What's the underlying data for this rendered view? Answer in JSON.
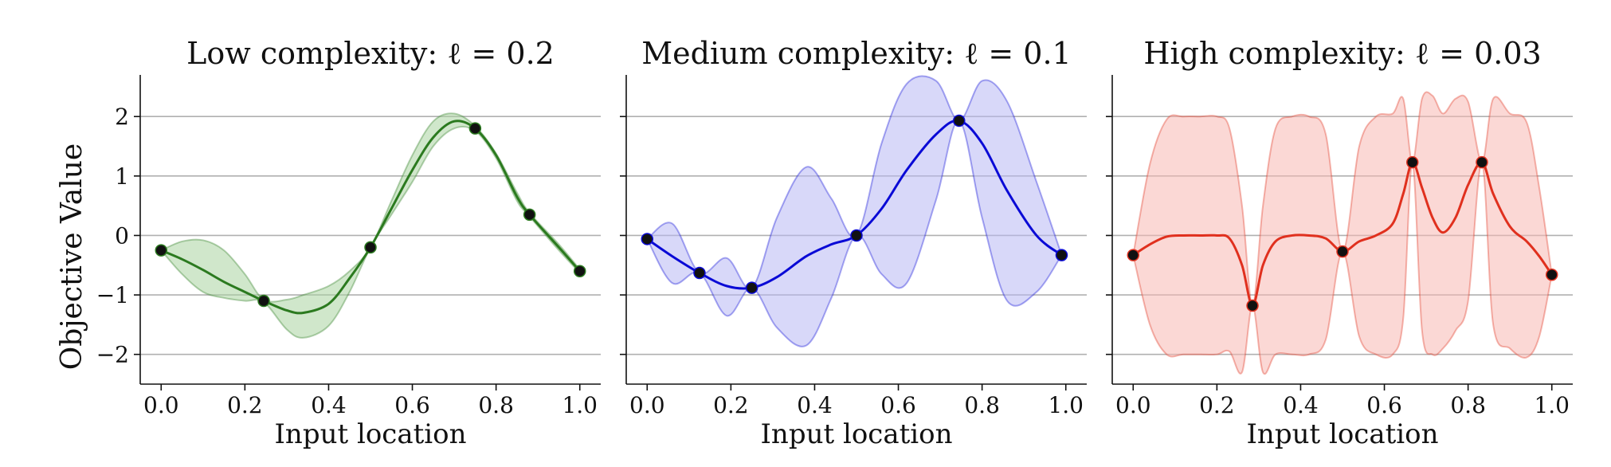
{
  "figure": {
    "ylabel": "Objective Value"
  },
  "chart_data": [
    {
      "type": "line",
      "title": "Low complexity: ℓ = 0.2",
      "xlabel": "Input location",
      "ylabel": "Objective Value",
      "xlim": [
        -0.05,
        1.05
      ],
      "ylim": [
        -2.5,
        2.7
      ],
      "xticks": [
        0.0,
        0.2,
        0.4,
        0.6,
        0.8,
        1.0
      ],
      "xtick_labels": [
        "0.0",
        "0.2",
        "0.4",
        "0.6",
        "0.8",
        "1.0"
      ],
      "yticks": [
        -2,
        -1,
        0,
        1,
        2
      ],
      "ytick_labels": [
        "−2",
        "−1",
        "0",
        "1",
        "2"
      ],
      "grid": "horizontal",
      "color": "#2b7a1f",
      "band_fill": "#a9d4a0",
      "mean": {
        "x": [
          0.0,
          0.05,
          0.1,
          0.15,
          0.2,
          0.245,
          0.3,
          0.34,
          0.4,
          0.45,
          0.5,
          0.55,
          0.6,
          0.65,
          0.7,
          0.75,
          0.8,
          0.85,
          0.88,
          0.95,
          1.0
        ],
        "y": [
          -0.25,
          -0.4,
          -0.58,
          -0.78,
          -0.95,
          -1.1,
          -1.26,
          -1.3,
          -1.15,
          -0.72,
          -0.2,
          0.45,
          1.1,
          1.65,
          1.92,
          1.8,
          1.35,
          0.65,
          0.35,
          -0.2,
          -0.6
        ]
      },
      "band_upper": [
        -0.25,
        -0.1,
        -0.08,
        -0.25,
        -0.65,
        -1.08,
        -1.08,
        -1.0,
        -0.85,
        -0.6,
        -0.2,
        0.58,
        1.35,
        1.92,
        2.05,
        1.84,
        1.38,
        0.72,
        0.38,
        -0.15,
        -0.57
      ],
      "band_lower": [
        -0.25,
        -0.65,
        -0.95,
        -1.05,
        -1.1,
        -1.12,
        -1.58,
        -1.72,
        -1.52,
        -0.95,
        -0.2,
        0.35,
        0.9,
        1.5,
        1.8,
        1.76,
        1.3,
        0.58,
        0.32,
        -0.25,
        -0.63
      ],
      "points": {
        "x": [
          0.0,
          0.245,
          0.5,
          0.75,
          0.88,
          1.0
        ],
        "y": [
          -0.25,
          -1.1,
          -0.2,
          1.8,
          0.35,
          -0.6
        ]
      }
    },
    {
      "type": "line",
      "title": "Medium complexity: ℓ = 0.1",
      "xlabel": "Input location",
      "xlim": [
        -0.05,
        1.05
      ],
      "ylim": [
        -2.5,
        2.7
      ],
      "xticks": [
        0.0,
        0.2,
        0.4,
        0.6,
        0.8,
        1.0
      ],
      "xtick_labels": [
        "0.0",
        "0.2",
        "0.4",
        "0.6",
        "0.8",
        "1.0"
      ],
      "yticks": [
        -2,
        -1,
        0,
        1,
        2
      ],
      "grid": "horizontal",
      "color": "#0a0ad6",
      "band_fill": "#b8b8f4",
      "mean": {
        "x": [
          0.0,
          0.06,
          0.125,
          0.19,
          0.25,
          0.31,
          0.38,
          0.44,
          0.5,
          0.56,
          0.62,
          0.69,
          0.745,
          0.8,
          0.86,
          0.93,
          0.99
        ],
        "y": [
          -0.06,
          -0.35,
          -0.63,
          -0.85,
          -0.88,
          -0.7,
          -0.35,
          -0.15,
          -0.0,
          0.45,
          1.1,
          1.7,
          1.93,
          1.55,
          0.75,
          0.0,
          -0.33
        ]
      },
      "band_upper": [
        -0.06,
        0.2,
        -0.63,
        -0.38,
        -0.88,
        0.3,
        1.15,
        0.62,
        -0.0,
        1.55,
        2.55,
        2.6,
        1.93,
        2.6,
        2.25,
        0.9,
        -0.33
      ],
      "band_lower": [
        -0.06,
        -0.8,
        -0.63,
        -1.35,
        -0.88,
        -1.55,
        -1.85,
        -1.05,
        -0.0,
        -0.65,
        -0.8,
        0.6,
        1.93,
        0.3,
        -1.1,
        -0.95,
        -0.33
      ],
      "points": {
        "x": [
          0.0,
          0.125,
          0.25,
          0.5,
          0.745,
          0.99
        ],
        "y": [
          -0.06,
          -0.63,
          -0.88,
          -0.0,
          1.93,
          -0.33
        ]
      }
    },
    {
      "type": "line",
      "title": "High complexity: ℓ = 0.03",
      "xlabel": "Input location",
      "xlim": [
        -0.05,
        1.05
      ],
      "ylim": [
        -2.5,
        2.7
      ],
      "xticks": [
        0.0,
        0.2,
        0.4,
        0.6,
        0.8,
        1.0
      ],
      "xtick_labels": [
        "0.0",
        "0.2",
        "0.4",
        "0.6",
        "0.8",
        "1.0"
      ],
      "yticks": [
        -2,
        -1,
        0,
        1,
        2
      ],
      "grid": "horizontal",
      "color": "#e0301e",
      "band_fill": "#f7b8b3",
      "mean": {
        "x": [
          0.0,
          0.04,
          0.08,
          0.12,
          0.16,
          0.2,
          0.23,
          0.26,
          0.285,
          0.31,
          0.34,
          0.38,
          0.42,
          0.46,
          0.5,
          0.54,
          0.58,
          0.62,
          0.645,
          0.667,
          0.69,
          0.715,
          0.74,
          0.77,
          0.8,
          0.833,
          0.86,
          0.9,
          0.94,
          0.97,
          1.0
        ],
        "y": [
          -0.33,
          -0.15,
          -0.02,
          0.0,
          0.0,
          0.0,
          -0.05,
          -0.5,
          -1.18,
          -0.5,
          -0.1,
          0.0,
          0.0,
          -0.05,
          -0.27,
          -0.1,
          -0.0,
          0.2,
          0.7,
          1.23,
          0.8,
          0.3,
          0.05,
          0.3,
          0.85,
          1.23,
          0.7,
          0.15,
          -0.1,
          -0.35,
          -0.66
        ]
      },
      "band_upper": [
        -0.33,
        1.2,
        1.95,
        2.0,
        2.0,
        2.0,
        1.8,
        0.5,
        -1.18,
        0.5,
        1.8,
        2.0,
        2.0,
        1.7,
        -0.27,
        1.5,
        2.0,
        2.05,
        2.3,
        1.23,
        2.3,
        2.35,
        2.05,
        2.3,
        2.25,
        1.23,
        2.3,
        2.05,
        1.9,
        0.8,
        -0.66
      ],
      "band_lower": [
        -0.33,
        -1.5,
        -2.0,
        -2.0,
        -2.0,
        -2.0,
        -1.95,
        -2.3,
        -1.18,
        -2.3,
        -2.0,
        -2.0,
        -2.0,
        -1.75,
        -0.27,
        -1.7,
        -2.0,
        -2.0,
        -1.4,
        1.23,
        -1.6,
        -2.0,
        -1.9,
        -1.6,
        -1.1,
        1.23,
        -1.5,
        -1.9,
        -2.05,
        -1.7,
        -0.66
      ],
      "points": {
        "x": [
          0.0,
          0.285,
          0.5,
          0.667,
          0.833,
          1.0
        ],
        "y": [
          -0.33,
          -1.18,
          -0.27,
          1.23,
          1.23,
          -0.66
        ]
      }
    }
  ]
}
